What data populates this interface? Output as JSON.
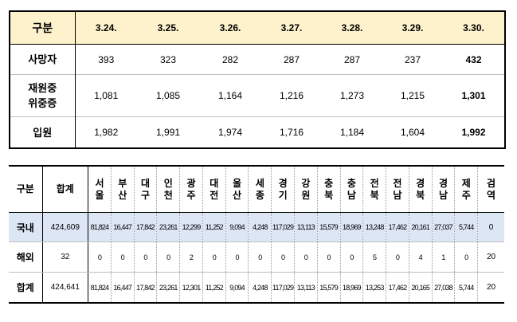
{
  "top_table": {
    "header": [
      "구분",
      "3.24.",
      "3.25.",
      "3.26.",
      "3.27.",
      "3.28.",
      "3.29.",
      "3.30."
    ],
    "rows": [
      {
        "label": "사망자",
        "values": [
          "393",
          "323",
          "282",
          "287",
          "287",
          "237",
          "432"
        ]
      },
      {
        "label": "재원중\n위중증",
        "values": [
          "1,081",
          "1,085",
          "1,164",
          "1,216",
          "1,273",
          "1,215",
          "1,301"
        ]
      },
      {
        "label": "입원",
        "values": [
          "1,982",
          "1,991",
          "1,974",
          "1,716",
          "1,184",
          "1,604",
          "1,992"
        ]
      }
    ]
  },
  "bottom_table": {
    "header": [
      "구분",
      "합계",
      "서울",
      "부산",
      "대구",
      "인천",
      "광주",
      "대전",
      "울산",
      "세종",
      "경기",
      "강원",
      "충북",
      "충남",
      "전북",
      "전남",
      "경북",
      "경남",
      "제주",
      "검역"
    ],
    "rows": [
      {
        "label": "국내",
        "total": "424,609",
        "values": [
          "81,824",
          "16,447",
          "17,842",
          "23,261",
          "12,299",
          "11,252",
          "9,094",
          "4,248",
          "117,029",
          "13,113",
          "15,579",
          "18,969",
          "13,248",
          "17,462",
          "20,161",
          "27,037",
          "5,744",
          "0"
        ]
      },
      {
        "label": "해외",
        "total": "32",
        "values": [
          "0",
          "0",
          "0",
          "0",
          "2",
          "0",
          "0",
          "0",
          "0",
          "0",
          "0",
          "0",
          "5",
          "0",
          "4",
          "1",
          "0",
          "20"
        ]
      },
      {
        "label": "합계",
        "total": "424,641",
        "values": [
          "81,824",
          "16,447",
          "17,842",
          "23,261",
          "12,301",
          "11,252",
          "9,094",
          "4,248",
          "117,029",
          "13,113",
          "15,579",
          "18,969",
          "13,253",
          "17,462",
          "20,165",
          "27,038",
          "5,744",
          "20"
        ]
      }
    ]
  }
}
